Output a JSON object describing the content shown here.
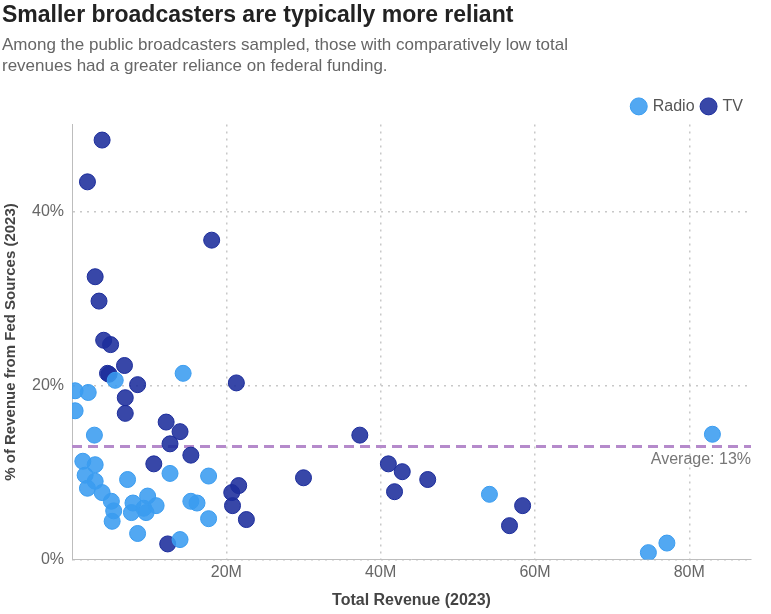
{
  "chart_data": {
    "type": "scatter",
    "title": "Smaller broadcasters are typically more reliant",
    "subtitle": [
      "Among the public broadcasters sampled, those with comparatively low total",
      "revenues had a greater reliance on federal funding."
    ],
    "x_label": "Total Revenue (2023)",
    "y_label": "% of Revenue from Fed Sources (2023)",
    "series": [
      {
        "name": "Radio",
        "color": "#3a9cf0",
        "marker": "circle",
        "x": [
          400000,
          400000,
          2100000,
          2900000,
          1400000,
          3000000,
          1700000,
          2000000,
          3000000,
          3900000,
          5100000,
          5400000,
          5200000,
          5600000,
          7200000,
          7900000,
          7700000,
          8500000,
          9300000,
          9800000,
          9600000,
          10900000,
          12700000,
          14400000,
          14000000,
          15400000,
          16200000,
          17700000,
          17700000,
          54100000,
          74700000,
          77100000,
          83000000
        ],
        "values": [
          19.4,
          17.1,
          19.2,
          14.3,
          11.3,
          10.9,
          9.7,
          8.2,
          9.0,
          7.7,
          6.7,
          5.6,
          4.4,
          20.6,
          9.2,
          6.5,
          5.4,
          3.0,
          5.9,
          7.3,
          5.4,
          6.2,
          9.9,
          21.4,
          2.3,
          6.7,
          6.5,
          9.6,
          4.7,
          7.5,
          0.8,
          1.9,
          14.4
        ]
      },
      {
        "name": "TV",
        "color": "#1c2d9c",
        "marker": "circle",
        "x": [
          2000000,
          3900000,
          3000000,
          3500000,
          4100000,
          5000000,
          4600000,
          4800000,
          6800000,
          6900000,
          6900000,
          8500000,
          10600000,
          12200000,
          12700000,
          14000000,
          15400000,
          18100000,
          12400000,
          21300000,
          20700000,
          20800000,
          21600000,
          22600000,
          30000000,
          37300000,
          41000000,
          41800000,
          42800000,
          46100000,
          56700000,
          58400000
        ],
        "values": [
          43.4,
          48.2,
          32.5,
          29.7,
          25.2,
          24.7,
          21.4,
          21.3,
          22.3,
          18.6,
          16.8,
          20.1,
          11.0,
          15.8,
          13.3,
          14.7,
          12.0,
          36.7,
          1.8,
          20.3,
          7.7,
          6.2,
          8.5,
          4.6,
          9.4,
          14.3,
          11.0,
          7.8,
          10.1,
          9.2,
          3.9,
          6.2
        ]
      }
    ],
    "xlim": [
      0,
      88000000
    ],
    "ylim": [
      0,
      50
    ],
    "xticks": [
      {
        "value": 20000000,
        "label": "20M"
      },
      {
        "value": 40000000,
        "label": "40M"
      },
      {
        "value": 60000000,
        "label": "60M"
      },
      {
        "value": 80000000,
        "label": "80M"
      }
    ],
    "yticks": [
      {
        "value": 0,
        "label": "0%"
      },
      {
        "value": 20,
        "label": "20%"
      },
      {
        "value": 40,
        "label": "40%"
      }
    ],
    "grid": true,
    "legend": "top right",
    "average": {
      "value": 13,
      "label": "Average: 13%",
      "color": "#b58acb",
      "line_style": "dashed"
    }
  }
}
